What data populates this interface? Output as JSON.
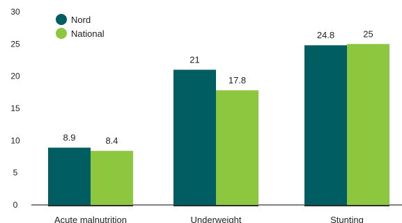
{
  "chart_data": {
    "type": "bar",
    "categories": [
      "Acute malnutrition",
      "Underweight",
      "Stunting"
    ],
    "series": [
      {
        "name": "Nord",
        "values": [
          8.9,
          21,
          24.8
        ],
        "color": "#005e62"
      },
      {
        "name": "National",
        "values": [
          8.4,
          17.8,
          25
        ],
        "color": "#8dc63f"
      }
    ],
    "data_labels": [
      [
        "8.9",
        "21",
        "24.8"
      ],
      [
        "8.4",
        "17.8",
        "25"
      ]
    ],
    "yticks": [
      "0",
      "5",
      "10",
      "15",
      "20",
      "25",
      "30"
    ],
    "ylim": [
      0,
      30
    ],
    "grid": false,
    "legend_position": "top-left"
  }
}
